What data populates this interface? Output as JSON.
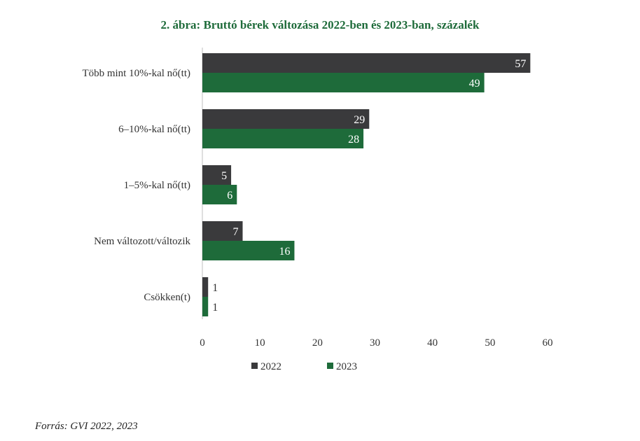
{
  "chart_data": {
    "type": "bar",
    "orientation": "horizontal",
    "title": "2. ábra: Bruttó bérek változása 2022-ben és 2023-ban, százalék",
    "categories": [
      "Több mint 10%-kal nő(tt)",
      "6–10%-kal nő(tt)",
      "1–5%-kal nő(tt)",
      "Nem változott/változik",
      "Csökken(t)"
    ],
    "series": [
      {
        "name": "2022",
        "values": [
          57,
          29,
          5,
          7,
          1
        ]
      },
      {
        "name": "2023",
        "values": [
          49,
          28,
          6,
          16,
          1
        ]
      }
    ],
    "xlim": [
      0,
      60
    ],
    "xticks": [
      0,
      10,
      20,
      30,
      40,
      50,
      60
    ],
    "grid": false,
    "legend_position": "bottom",
    "data_labels": true
  },
  "colors": {
    "series": [
      "#3a3a3c",
      "#1e6b3a"
    ],
    "title": "#1e6b3a",
    "axis": "#bfbfbf",
    "text": "#333333",
    "label_inside": "#ffffff"
  },
  "source": "Forrás: GVI 2022, 2023"
}
